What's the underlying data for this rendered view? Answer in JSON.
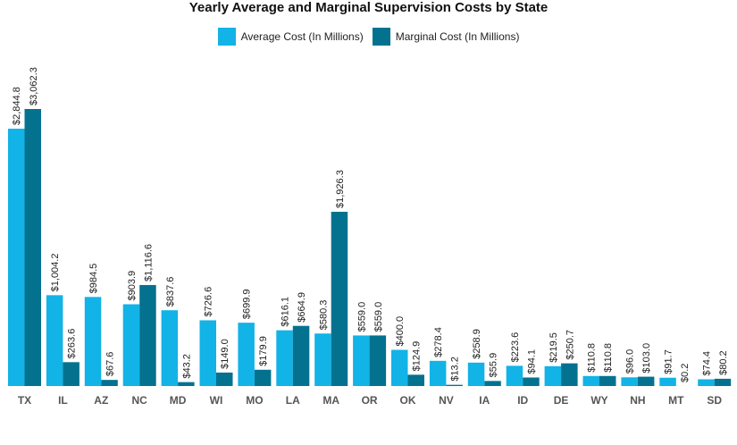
{
  "chart_data": {
    "type": "bar",
    "title": "Yearly Average and Marginal Supervision Costs by State",
    "categories": [
      "TX",
      "IL",
      "AZ",
      "NC",
      "MD",
      "WI",
      "MO",
      "LA",
      "MA",
      "OR",
      "OK",
      "NV",
      "IA",
      "ID",
      "DE",
      "WY",
      "NH",
      "MT",
      "SD"
    ],
    "series": [
      {
        "name": "Average Cost (In Millions)",
        "color": "#12b3e6",
        "values": [
          2844.8,
          1004.2,
          984.5,
          903.9,
          837.6,
          726.6,
          699.9,
          616.1,
          580.3,
          559.0,
          400.0,
          278.4,
          258.9,
          223.6,
          219.5,
          110.8,
          96.0,
          91.7,
          74.4
        ],
        "labels": [
          "$2,844.8",
          "$1,004.2",
          "$984.5",
          "$903.9",
          "$837.6",
          "$726.6",
          "$699.9",
          "$616.1",
          "$580.3",
          "$559.0",
          "$400.0",
          "$278.4",
          "$258.9",
          "$223.6",
          "$219.5",
          "$110.8",
          "$96.0",
          "$91.7",
          "$74.4"
        ]
      },
      {
        "name": "Marginal Cost (In Millions)",
        "color": "#04728f",
        "values": [
          3062.3,
          263.6,
          67.6,
          1116.6,
          43.2,
          149.0,
          179.9,
          664.9,
          1926.3,
          559.0,
          124.9,
          13.2,
          55.9,
          94.1,
          250.7,
          110.8,
          103.0,
          0.2,
          80.2
        ],
        "labels": [
          "$3,062.3",
          "$263.6",
          "$67.6",
          "$1,116.6",
          "$43.2",
          "$149.0",
          "$179.9",
          "$664.9",
          "$1,926.3",
          "$559.0",
          "$124.9",
          "$13.2",
          "$55.9",
          "$94.1",
          "$250.7",
          "$110.8",
          "$103.0",
          "$0.2",
          "$80.2"
        ]
      }
    ],
    "legend": "top",
    "grid": false
  }
}
